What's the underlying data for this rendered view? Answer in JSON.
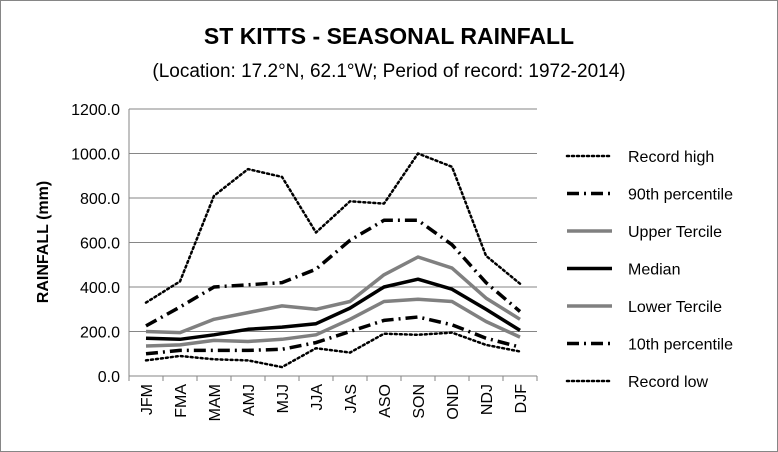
{
  "chart_data": {
    "type": "line",
    "title": "ST KITTS - SEASONAL RAINFALL",
    "subtitle": "(Location: 17.2°N, 62.1°W; Period of record: 1972-2014)",
    "xlabel": "",
    "ylabel": "RAINFALL (mm)",
    "ylim": [
      0,
      1200
    ],
    "yticks": [
      "0.0",
      "200.0",
      "400.0",
      "600.0",
      "800.0",
      "1000.0",
      "1200.0"
    ],
    "categories": [
      "JFM",
      "FMA",
      "MAM",
      "AMJ",
      "MJJ",
      "JJA",
      "JAS",
      "ASO",
      "SON",
      "OND",
      "NDJ",
      "DJF"
    ],
    "grid": "horizontal",
    "legend_position": "right",
    "series": [
      {
        "name": "Record high",
        "style": "dotted",
        "color": "#000000",
        "values": [
          330,
          425,
          810,
          930,
          895,
          645,
          785,
          775,
          1000,
          940,
          540,
          415
        ]
      },
      {
        "name": "90th percentile",
        "style": "dashdot",
        "color": "#000000",
        "values": [
          225,
          310,
          400,
          410,
          420,
          480,
          610,
          700,
          700,
          590,
          420,
          290
        ]
      },
      {
        "name": "Upper Tercile",
        "style": "solid",
        "color": "#808080",
        "values": [
          200,
          195,
          255,
          285,
          315,
          300,
          335,
          455,
          535,
          485,
          350,
          255
        ]
      },
      {
        "name": "Median",
        "style": "solid",
        "color": "#000000",
        "values": [
          170,
          165,
          185,
          210,
          220,
          235,
          305,
          400,
          435,
          390,
          300,
          205
        ]
      },
      {
        "name": "Lower Tercile",
        "style": "solid",
        "color": "#808080",
        "values": [
          135,
          140,
          160,
          155,
          165,
          185,
          255,
          335,
          345,
          335,
          245,
          175
        ]
      },
      {
        "name": "10th percentile",
        "style": "dashdot",
        "color": "#000000",
        "values": [
          100,
          115,
          115,
          115,
          120,
          150,
          200,
          250,
          265,
          230,
          170,
          130
        ]
      },
      {
        "name": "Record low",
        "style": "dotted",
        "color": "#000000",
        "values": [
          70,
          90,
          75,
          70,
          40,
          125,
          105,
          190,
          185,
          195,
          140,
          110
        ]
      }
    ]
  }
}
